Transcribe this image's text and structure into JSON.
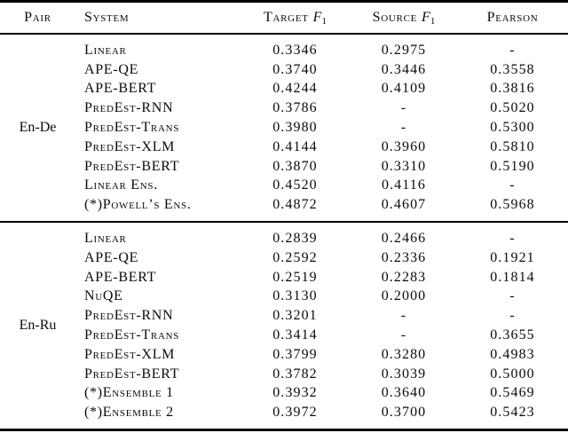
{
  "colors": {
    "text": "#000000",
    "background": "#ffffff",
    "rule": "#000000"
  },
  "table": {
    "headers": {
      "pair": "Pair",
      "system": "System",
      "target": "Target",
      "source": "Source",
      "pearson": "Pearson",
      "f_symbol": "F",
      "f_subscript": "1"
    },
    "empty_value": "-",
    "groups": [
      {
        "pair": "En-De",
        "rows": [
          {
            "system": "Linear",
            "target_f1": "0.3346",
            "source_f1": "0.2975",
            "pearson": "-"
          },
          {
            "system": "APE-QE",
            "target_f1": "0.3740",
            "source_f1": "0.3446",
            "pearson": "0.3558"
          },
          {
            "system": "APE-BERT",
            "target_f1": "0.4244",
            "source_f1": "0.4109",
            "pearson": "0.3816"
          },
          {
            "system": "PredEst-RNN",
            "target_f1": "0.3786",
            "source_f1": "-",
            "pearson": "0.5020"
          },
          {
            "system": "PredEst-Trans",
            "target_f1": "0.3980",
            "source_f1": "-",
            "pearson": "0.5300"
          },
          {
            "system": "PredEst-XLM",
            "target_f1": "0.4144",
            "source_f1": "0.3960",
            "pearson": "0.5810"
          },
          {
            "system": "PredEst-BERT",
            "target_f1": "0.3870",
            "source_f1": "0.3310",
            "pearson": "0.5190"
          },
          {
            "system": "Linear Ens.",
            "target_f1": "0.4520",
            "source_f1": "0.4116",
            "pearson": "-"
          },
          {
            "system": "(*)Powell’s Ens.",
            "target_f1": "0.4872",
            "source_f1": "0.4607",
            "pearson": "0.5968"
          }
        ]
      },
      {
        "pair": "En-Ru",
        "rows": [
          {
            "system": "Linear",
            "target_f1": "0.2839",
            "source_f1": "0.2466",
            "pearson": "-"
          },
          {
            "system": "APE-QE",
            "target_f1": "0.2592",
            "source_f1": "0.2336",
            "pearson": "0.1921"
          },
          {
            "system": "APE-BERT",
            "target_f1": "0.2519",
            "source_f1": "0.2283",
            "pearson": "0.1814"
          },
          {
            "system": "NuQE",
            "target_f1": "0.3130",
            "source_f1": "0.2000",
            "pearson": "-"
          },
          {
            "system": "PredEst-RNN",
            "target_f1": "0.3201",
            "source_f1": "-",
            "pearson": "-"
          },
          {
            "system": "PredEst-Trans",
            "target_f1": "0.3414",
            "source_f1": "-",
            "pearson": "0.3655"
          },
          {
            "system": "PredEst-XLM",
            "target_f1": "0.3799",
            "source_f1": "0.3280",
            "pearson": "0.4983"
          },
          {
            "system": "PredEst-BERT",
            "target_f1": "0.3782",
            "source_f1": "0.3039",
            "pearson": "0.5000"
          },
          {
            "system": "(*)Ensemble 1",
            "target_f1": "0.3932",
            "source_f1": "0.3640",
            "pearson": "0.5469"
          },
          {
            "system": "(*)Ensemble 2",
            "target_f1": "0.3972",
            "source_f1": "0.3700",
            "pearson": "0.5423"
          }
        ]
      }
    ]
  }
}
